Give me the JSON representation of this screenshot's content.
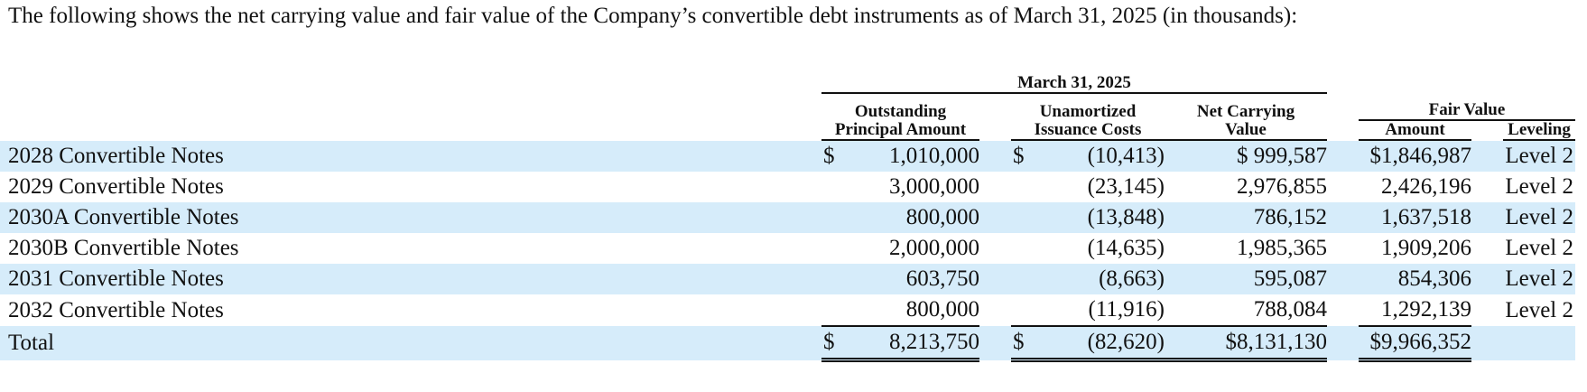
{
  "intro": "The following shows the net carrying value and fair value of the Company’s convertible debt instruments as of March 31, 2025 (in thousands):",
  "headers": {
    "group_date": "March 31, 2025",
    "principal_line1": "Outstanding",
    "principal_line2": "Principal Amount",
    "issuance_line1": "Unamortized",
    "issuance_line2": "Issuance Costs",
    "net_line1": "Net Carrying",
    "net_line2": "Value",
    "fair_value": "Fair Value",
    "amount": "Amount",
    "leveling": "Leveling"
  },
  "rows": [
    {
      "label": "2028 Convertible Notes",
      "principal_dollar": "$",
      "principal": "1,010,000",
      "issuance_dollar": "$",
      "issuance": "(10,413)",
      "net": "$ 999,587",
      "fair_amount": "$1,846,987",
      "level": "Level 2"
    },
    {
      "label": "2029 Convertible Notes",
      "principal_dollar": "",
      "principal": "3,000,000",
      "issuance_dollar": "",
      "issuance": "(23,145)",
      "net": "2,976,855",
      "fair_amount": "2,426,196",
      "level": "Level 2"
    },
    {
      "label": "2030A Convertible Notes",
      "principal_dollar": "",
      "principal": "800,000",
      "issuance_dollar": "",
      "issuance": "(13,848)",
      "net": "786,152",
      "fair_amount": "1,637,518",
      "level": "Level 2"
    },
    {
      "label": "2030B Convertible Notes",
      "principal_dollar": "",
      "principal": "2,000,000",
      "issuance_dollar": "",
      "issuance": "(14,635)",
      "net": "1,985,365",
      "fair_amount": "1,909,206",
      "level": "Level 2"
    },
    {
      "label": "2031 Convertible Notes",
      "principal_dollar": "",
      "principal": "603,750",
      "issuance_dollar": "",
      "issuance": "(8,663)",
      "net": "595,087",
      "fair_amount": "854,306",
      "level": "Level 2"
    },
    {
      "label": "2032 Convertible Notes",
      "principal_dollar": "",
      "principal": "800,000",
      "issuance_dollar": "",
      "issuance": "(11,916)",
      "net": "788,084",
      "fair_amount": "1,292,139",
      "level": "Level 2"
    }
  ],
  "total": {
    "label": "Total",
    "principal_dollar": "$",
    "principal": "8,213,750",
    "issuance_dollar": "$",
    "issuance": "(82,620)",
    "net": "$8,131,130",
    "fair_amount": "$9,966,352",
    "level": ""
  },
  "colors": {
    "band": "#d6ecfa",
    "text": "#111111"
  }
}
